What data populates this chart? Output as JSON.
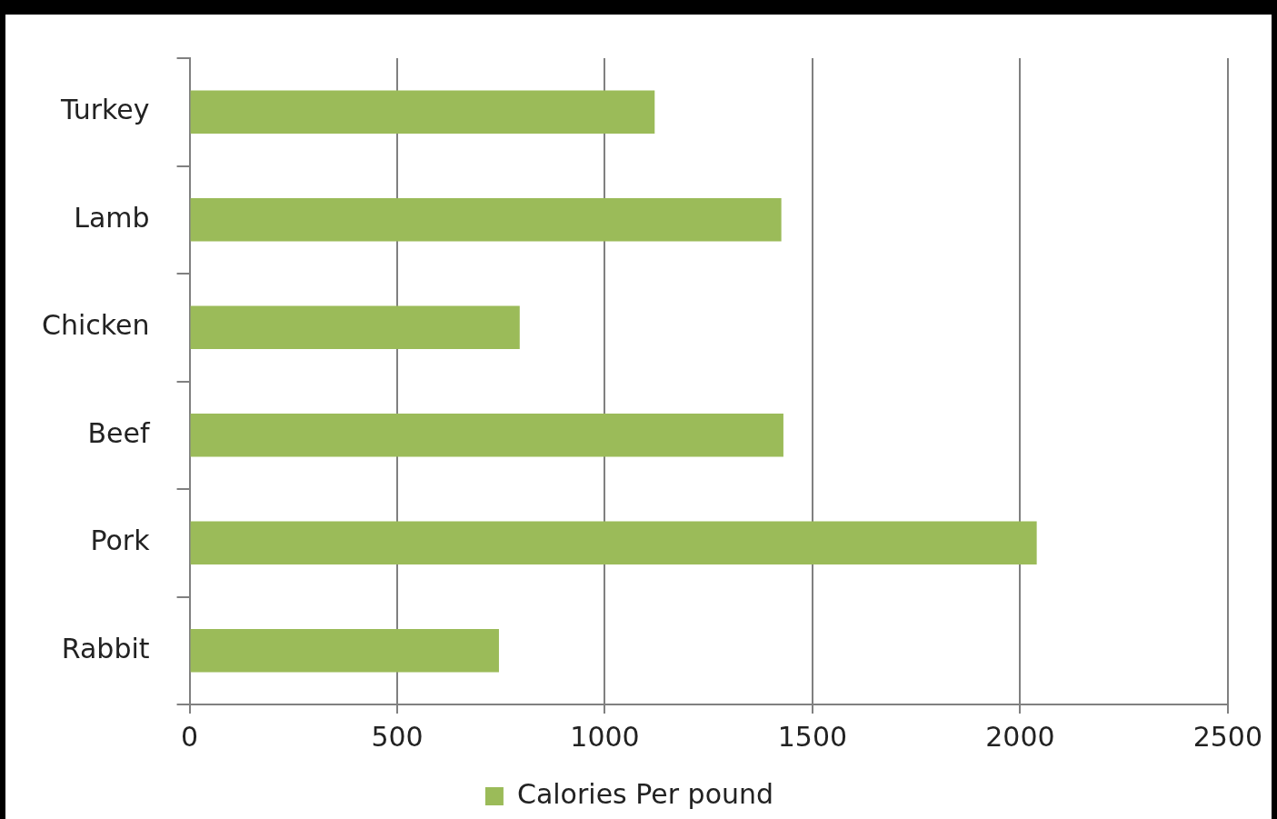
{
  "chart_data": {
    "type": "bar",
    "orientation": "horizontal",
    "categories": [
      "Turkey",
      "Lamb",
      "Chicken",
      "Beef",
      "Pork",
      "Rabbit"
    ],
    "series": [
      {
        "name": "Calories Per pound",
        "color": "#9bbb59",
        "values": [
          1120,
          1425,
          795,
          1430,
          2040,
          745
        ]
      }
    ],
    "xlim": [
      0,
      2500
    ],
    "xticks": [
      0,
      500,
      1000,
      1500,
      2000,
      2500
    ],
    "grid": "x",
    "legend": "bottom"
  }
}
